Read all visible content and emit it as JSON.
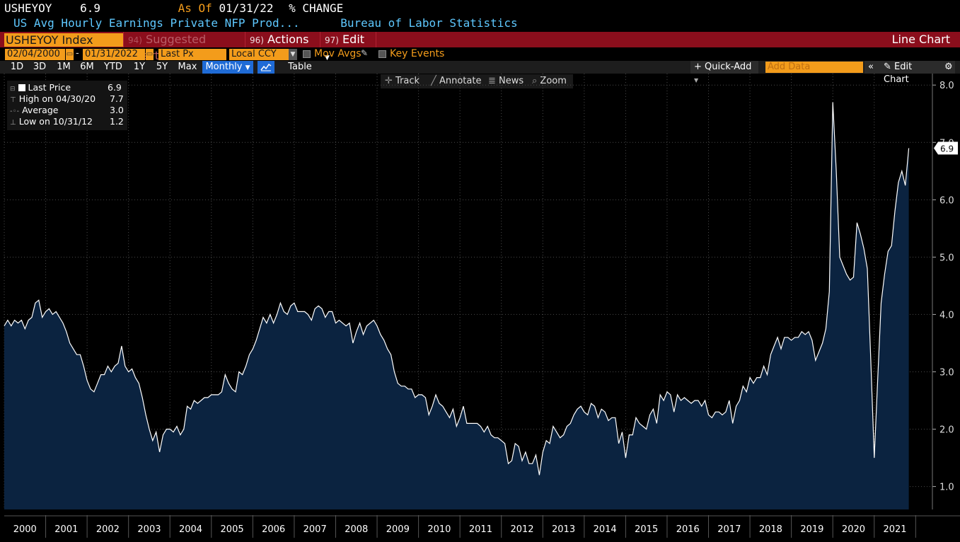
{
  "header": {
    "ticker": "USHEYOY",
    "value": "6.9",
    "as_of_label": "As Of",
    "as_of_date": "01/31/22",
    "change_label": "% CHANGE",
    "description": "US Avg Hourly Earnings Private NFP Prod...",
    "source": "Bureau of Labor Statistics"
  },
  "red_bar": {
    "index_box": "USHEYOY Index",
    "suggested_num": "94)",
    "suggested": "Suggested Charts",
    "actions_num": "96)",
    "actions": "Actions",
    "edit_num": "97)",
    "edit": "Edit",
    "line_chart": "Line Chart"
  },
  "controls": {
    "start_date": "02/04/2000",
    "end_date": "01/31/2022",
    "field": "Last Px",
    "currency": "Local CCY",
    "mov_avgs": "Mov Avgs",
    "key_events": "Key Events"
  },
  "periods": [
    "1D",
    "3D",
    "1M",
    "6M",
    "YTD",
    "1Y",
    "5Y",
    "Max"
  ],
  "frequency": "Monthly",
  "table_label": "Table",
  "quick_add": "Quick-Add",
  "add_data_placeholder": "Add Data",
  "edit_chart": "Edit Chart",
  "toolbar": {
    "track": "Track",
    "annotate": "Annotate",
    "news": "News",
    "zoom": "Zoom"
  },
  "legend": {
    "last_price_label": "Last Price",
    "last_price": "6.9",
    "high_label": "High on 04/30/20",
    "high": "7.7",
    "average_label": "Average",
    "average": "3.0",
    "low_label": "Low on 10/31/12",
    "low": "1.2"
  },
  "colors": {
    "accent_orange": "#f39c1b",
    "bar_red": "#8b0e1c",
    "line": "#ffffff",
    "area": "#0b2340",
    "title_blue": "#5ec8ff"
  },
  "chart_data": {
    "type": "area",
    "frequency": "monthly",
    "ylim": [
      0.6,
      8.2
    ],
    "y_ticks": [
      1.0,
      2.0,
      3.0,
      4.0,
      5.0,
      6.0,
      7.0,
      8.0
    ],
    "x_tick_labels": [
      "2000",
      "2001",
      "2002",
      "2003",
      "2004",
      "2005",
      "2006",
      "2007",
      "2008",
      "2009",
      "2010",
      "2011",
      "2012",
      "2013",
      "2014",
      "2015",
      "2016",
      "2017",
      "2018",
      "2019",
      "2020",
      "2021"
    ],
    "last_value_label": "6.9",
    "grid": true,
    "series": [
      {
        "start": "2000-01",
        "values": [
          3.8,
          3.9,
          3.8,
          3.9,
          3.85,
          3.9,
          3.75,
          3.9,
          3.95,
          4.2,
          4.25,
          3.95,
          4.05,
          4.1,
          4.0,
          4.05,
          3.95,
          3.85,
          3.7,
          3.5,
          3.4,
          3.3,
          3.3,
          3.1,
          2.85,
          2.7,
          2.65,
          2.8,
          2.95,
          2.95,
          3.1,
          3.0,
          3.1,
          3.15,
          3.45,
          3.1,
          3.0,
          3.05,
          2.9,
          2.8,
          2.55,
          2.25,
          2.0,
          1.8,
          1.95,
          1.6,
          1.9,
          2.0,
          2.0,
          1.95,
          2.05,
          1.9,
          2.0,
          2.4,
          2.35,
          2.5,
          2.45,
          2.5,
          2.55,
          2.55,
          2.6,
          2.6,
          2.6,
          2.65,
          2.95,
          2.8,
          2.7,
          2.65,
          3.0,
          2.95,
          3.1,
          3.3,
          3.4,
          3.55,
          3.75,
          3.95,
          3.85,
          4.0,
          3.85,
          4.0,
          4.2,
          4.05,
          4.0,
          4.15,
          4.2,
          4.05,
          4.05,
          4.05,
          4.0,
          3.9,
          4.1,
          4.15,
          4.1,
          3.95,
          4.05,
          4.05,
          3.85,
          3.9,
          3.85,
          3.8,
          3.85,
          3.5,
          3.7,
          3.85,
          3.65,
          3.8,
          3.85,
          3.9,
          3.8,
          3.65,
          3.55,
          3.4,
          3.3,
          3.0,
          2.8,
          2.75,
          2.75,
          2.7,
          2.7,
          2.55,
          2.6,
          2.6,
          2.55,
          2.25,
          2.4,
          2.6,
          2.45,
          2.4,
          2.3,
          2.2,
          2.35,
          2.05,
          2.2,
          2.4,
          2.1,
          2.1,
          2.1,
          2.1,
          2.05,
          1.95,
          2.05,
          1.9,
          1.85,
          1.85,
          1.8,
          1.75,
          1.4,
          1.45,
          1.75,
          1.7,
          1.45,
          1.6,
          1.4,
          1.4,
          1.55,
          1.2,
          1.6,
          1.8,
          1.75,
          2.05,
          1.95,
          1.85,
          1.9,
          2.05,
          2.1,
          2.25,
          2.35,
          2.4,
          2.3,
          2.25,
          2.45,
          2.4,
          2.2,
          2.35,
          2.3,
          2.15,
          2.2,
          2.2,
          1.75,
          1.95,
          1.5,
          1.9,
          1.9,
          2.2,
          2.1,
          2.05,
          2.0,
          2.25,
          2.35,
          2.1,
          2.6,
          2.5,
          2.65,
          2.6,
          2.3,
          2.6,
          2.5,
          2.55,
          2.5,
          2.45,
          2.5,
          2.5,
          2.4,
          2.5,
          2.25,
          2.2,
          2.3,
          2.3,
          2.25,
          2.3,
          2.5,
          2.1,
          2.4,
          2.5,
          2.75,
          2.65,
          2.9,
          2.8,
          2.9,
          2.9,
          3.1,
          2.95,
          3.3,
          3.45,
          3.6,
          3.4,
          3.6,
          3.6,
          3.55,
          3.6,
          3.6,
          3.7,
          3.65,
          3.7,
          3.55,
          3.2,
          3.35,
          3.5,
          3.75,
          4.4,
          7.7,
          6.5,
          5.0,
          4.85,
          4.7,
          4.6,
          4.65,
          5.6,
          5.4,
          5.15,
          4.8,
          3.2,
          1.5,
          2.85,
          4.2,
          4.7,
          5.1,
          5.2,
          5.8,
          6.3,
          6.5,
          6.25,
          6.9
        ]
      }
    ]
  }
}
